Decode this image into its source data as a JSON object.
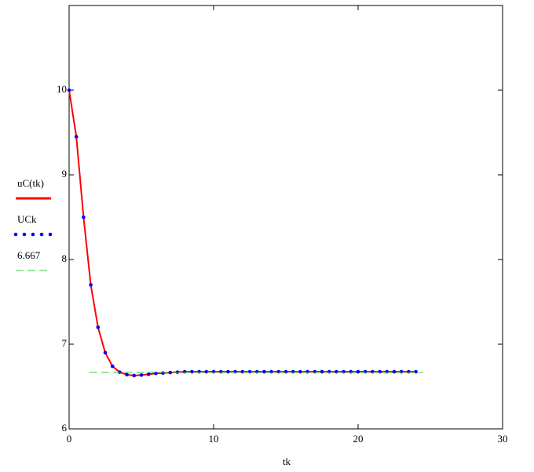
{
  "chart_data": {
    "type": "line",
    "xlabel": "tk",
    "x": [
      0,
      0.5,
      1,
      1.5,
      2,
      2.5,
      3,
      3.5,
      4,
      4.5,
      5,
      5.5,
      6,
      6.5,
      7,
      7.5,
      8,
      8.5,
      9,
      9.5,
      10,
      10.5,
      11,
      11.5,
      12,
      12.5,
      13,
      13.5,
      14,
      14.5,
      15,
      15.5,
      16,
      16.5,
      17,
      17.5,
      18,
      18.5,
      19,
      19.5,
      20,
      20.5,
      21,
      21.5,
      22,
      22.5,
      23,
      23.5,
      24
    ],
    "series": [
      {
        "name": "uC(tk)",
        "color": "#ff0000",
        "style": "solid",
        "values": [
          10,
          9.45,
          8.5,
          7.7,
          7.2,
          6.9,
          6.74,
          6.67,
          6.64,
          6.63,
          6.635,
          6.645,
          6.655,
          6.66,
          6.665,
          6.67,
          6.675,
          6.675,
          6.675,
          6.675,
          6.675,
          6.675,
          6.675,
          6.675,
          6.675,
          6.675,
          6.675,
          6.675,
          6.675,
          6.675,
          6.675,
          6.675,
          6.675,
          6.675,
          6.675,
          6.675,
          6.675,
          6.675,
          6.675,
          6.675,
          6.675,
          6.675,
          6.675,
          6.675,
          6.675,
          6.675,
          6.675,
          6.675,
          6.675
        ]
      },
      {
        "name": "UCk",
        "color": "#0000ff",
        "style": "dots",
        "values": [
          10,
          9.45,
          8.5,
          7.7,
          7.2,
          6.9,
          6.74,
          6.67,
          6.64,
          6.63,
          6.635,
          6.645,
          6.655,
          6.66,
          6.665,
          6.67,
          6.675,
          6.675,
          6.675,
          6.675,
          6.675,
          6.675,
          6.675,
          6.675,
          6.675,
          6.675,
          6.675,
          6.675,
          6.675,
          6.675,
          6.675,
          6.675,
          6.675,
          6.675,
          6.675,
          6.675,
          6.675,
          6.675,
          6.675,
          6.675,
          6.675,
          6.675,
          6.675,
          6.675,
          6.675,
          6.675,
          6.675,
          6.675,
          6.675
        ]
      },
      {
        "name": "6.667",
        "color": "#33cc33",
        "style": "dashed",
        "x": [
          1.4,
          24.5
        ],
        "values": [
          6.667,
          6.667
        ]
      }
    ],
    "xlim": [
      0,
      30
    ],
    "xticks": [
      0,
      10,
      20,
      30
    ],
    "ylim": [
      6,
      11
    ],
    "yticks": [
      6,
      7,
      8,
      9,
      10
    ]
  }
}
